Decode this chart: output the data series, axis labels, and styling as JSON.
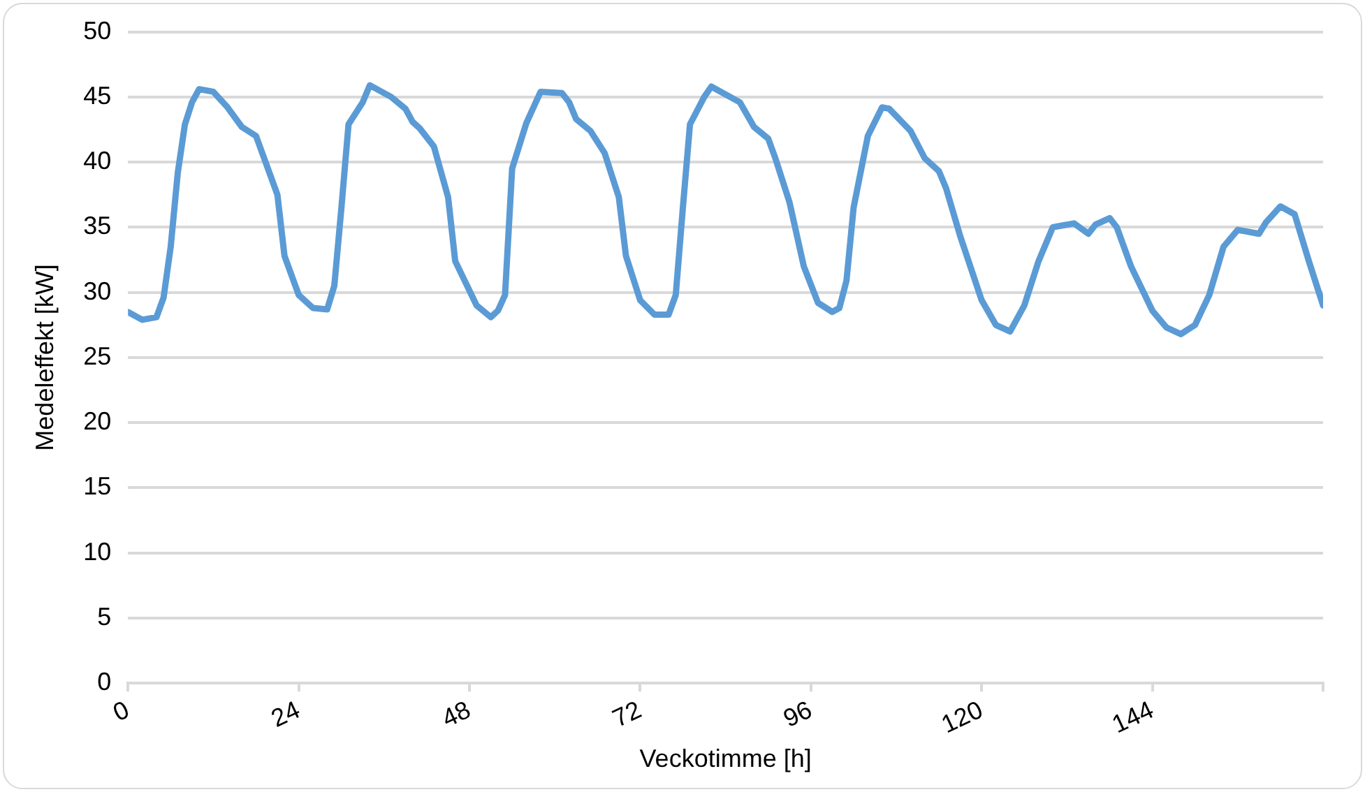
{
  "chart_data": {
    "type": "line",
    "xlabel": "Veckotimme [h]",
    "ylabel": "Medeleffekt [kW]",
    "x": [
      0,
      2,
      4,
      5,
      6,
      7,
      8,
      9,
      10,
      12,
      14,
      16,
      18,
      19,
      21,
      22,
      24,
      26,
      28,
      29,
      30,
      31,
      33,
      34,
      37,
      39,
      40,
      41,
      43,
      45,
      46,
      49,
      51,
      52,
      53,
      54,
      56,
      58,
      61,
      62,
      63,
      65,
      67,
      69,
      70,
      72,
      74,
      76,
      77,
      78,
      79,
      81,
      82,
      86,
      88,
      90,
      91,
      93,
      95,
      97,
      99,
      100,
      101,
      102,
      104,
      106,
      107,
      110,
      112,
      114,
      115,
      117,
      120,
      122,
      124,
      126,
      128,
      130,
      133,
      135,
      136,
      138,
      139,
      141,
      144,
      146,
      148,
      150,
      152,
      154,
      156,
      159,
      160,
      162,
      164,
      166,
      168
    ],
    "series": [
      {
        "color": "#5b9bd5",
        "values": [
          28.5,
          27.9,
          28.1,
          29.6,
          33.5,
          39.2,
          42.9,
          44.6,
          45.6,
          45.4,
          44.2,
          42.7,
          42.0,
          40.5,
          37.5,
          32.8,
          29.8,
          28.8,
          28.7,
          30.5,
          36.5,
          42.9,
          44.6,
          45.9,
          45.0,
          44.1,
          43.1,
          42.6,
          41.2,
          37.3,
          32.4,
          29.0,
          28.1,
          28.6,
          29.8,
          39.5,
          43.0,
          45.4,
          45.3,
          44.6,
          43.3,
          42.4,
          40.7,
          37.3,
          32.8,
          29.4,
          28.3,
          28.3,
          29.8,
          36.5,
          42.9,
          45.0,
          45.8,
          44.6,
          42.7,
          41.8,
          40.3,
          36.9,
          32.0,
          29.2,
          28.5,
          28.8,
          30.9,
          36.5,
          42.0,
          44.2,
          44.1,
          42.4,
          40.3,
          39.3,
          38.0,
          34.3,
          29.4,
          27.5,
          27.0,
          29.0,
          32.4,
          35.0,
          35.3,
          34.5,
          35.2,
          35.7,
          35.0,
          32.0,
          28.6,
          27.3,
          26.8,
          27.5,
          29.8,
          33.5,
          34.8,
          34.5,
          35.4,
          36.6,
          36.0,
          32.4,
          29.0
        ]
      }
    ],
    "xlim": [
      0,
      168
    ],
    "xticks": [
      0,
      24,
      48,
      72,
      96,
      120,
      144,
      {
        "value": 168,
        "label": null
      }
    ],
    "ylim": [
      0,
      50
    ],
    "yticks": [
      0,
      5,
      10,
      15,
      20,
      25,
      30,
      35,
      40,
      45,
      50
    ],
    "grid": "y",
    "legend": false,
    "marker": "none",
    "line_style": "solid"
  }
}
